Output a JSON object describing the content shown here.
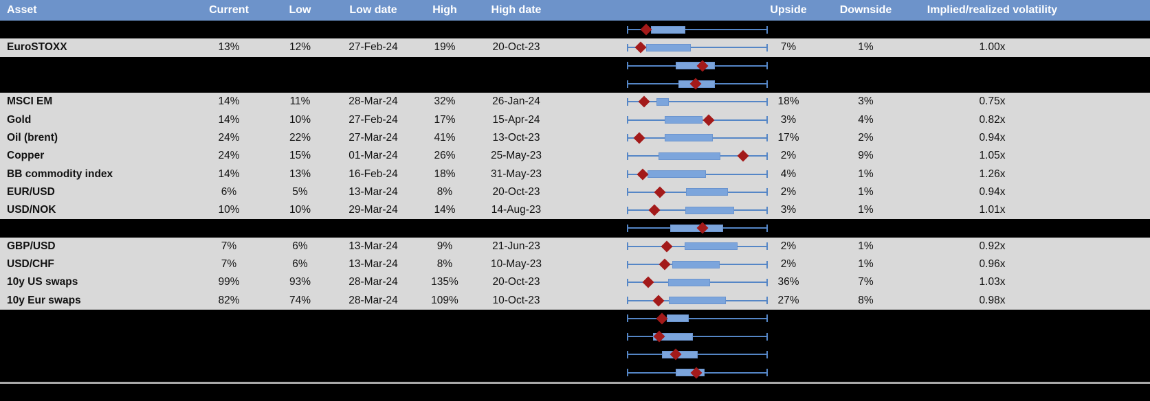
{
  "header": {
    "columns": [
      "Asset",
      "Current",
      "Low",
      "Low date",
      "High",
      "High date",
      "",
      "Upside",
      "Downside",
      "Implied/realized volatility"
    ]
  },
  "colors": {
    "header_bg": "#6D93CA",
    "row_bg": "#D9D9D9",
    "hidden_row_bg": "#000000",
    "whisker": "#5586C6",
    "box_fill": "#7CA5DC",
    "box_border": "#6A94CF",
    "diamond": "#A31A1A",
    "footer_line": "#A9A9A9"
  },
  "rows": [
    {
      "type": "hidden",
      "asset": "",
      "current": "",
      "low": "",
      "low_date": "",
      "high": "",
      "high_date": "",
      "upside": "",
      "downside": "",
      "implied": ""
    },
    {
      "type": "data",
      "asset": "EuroSTOXX",
      "current": "13%",
      "low": "12%",
      "low_date": "27-Feb-24",
      "high": "19%",
      "high_date": "20-Oct-23",
      "upside": "7%",
      "downside": "1%",
      "implied": "1.00x"
    },
    {
      "type": "hidden",
      "asset": "",
      "current": "",
      "low": "",
      "low_date": "",
      "high": "",
      "high_date": "",
      "upside": "",
      "downside": "",
      "implied": ""
    },
    {
      "type": "hidden",
      "asset": "",
      "current": "",
      "low": "",
      "low_date": "",
      "high": "",
      "high_date": "",
      "upside": "",
      "downside": "",
      "implied": ""
    },
    {
      "type": "data",
      "asset": "MSCI EM",
      "current": "14%",
      "low": "11%",
      "low_date": "28-Mar-24",
      "high": "32%",
      "high_date": "26-Jan-24",
      "upside": "18%",
      "downside": "3%",
      "implied": "0.75x"
    },
    {
      "type": "data",
      "asset": "Gold",
      "current": "14%",
      "low": "10%",
      "low_date": "27-Feb-24",
      "high": "17%",
      "high_date": "15-Apr-24",
      "upside": "3%",
      "downside": "4%",
      "implied": "0.82x"
    },
    {
      "type": "data",
      "asset": "Oil (brent)",
      "current": "24%",
      "low": "22%",
      "low_date": "27-Mar-24",
      "high": "41%",
      "high_date": "13-Oct-23",
      "upside": "17%",
      "downside": "2%",
      "implied": "0.94x"
    },
    {
      "type": "data",
      "asset": "Copper",
      "current": "24%",
      "low": "15%",
      "low_date": "01-Mar-24",
      "high": "26%",
      "high_date": "25-May-23",
      "upside": "2%",
      "downside": "9%",
      "implied": "1.05x"
    },
    {
      "type": "data",
      "asset": "BB commodity index",
      "current": "14%",
      "low": "13%",
      "low_date": "16-Feb-24",
      "high": "18%",
      "high_date": "31-May-23",
      "upside": "4%",
      "downside": "1%",
      "implied": "1.26x"
    },
    {
      "type": "data",
      "asset": "EUR/USD",
      "current": "6%",
      "low": "5%",
      "low_date": "13-Mar-24",
      "high": "8%",
      "high_date": "20-Oct-23",
      "upside": "2%",
      "downside": "1%",
      "implied": "0.94x"
    },
    {
      "type": "data",
      "asset": "USD/NOK",
      "current": "10%",
      "low": "10%",
      "low_date": "29-Mar-24",
      "high": "14%",
      "high_date": "14-Aug-23",
      "upside": "3%",
      "downside": "1%",
      "implied": "1.01x"
    },
    {
      "type": "hidden",
      "asset": "",
      "current": "",
      "low": "",
      "low_date": "",
      "high": "",
      "high_date": "",
      "upside": "",
      "downside": "",
      "implied": ""
    },
    {
      "type": "data",
      "asset": "GBP/USD",
      "current": "7%",
      "low": "6%",
      "low_date": "13-Mar-24",
      "high": "9%",
      "high_date": "21-Jun-23",
      "upside": "2%",
      "downside": "1%",
      "implied": "0.92x"
    },
    {
      "type": "data",
      "asset": "USD/CHF",
      "current": "7%",
      "low": "6%",
      "low_date": "13-Mar-24",
      "high": "8%",
      "high_date": "10-May-23",
      "upside": "2%",
      "downside": "1%",
      "implied": "0.96x"
    },
    {
      "type": "data",
      "asset": "10y US swaps",
      "current": "99%",
      "low": "93%",
      "low_date": "28-Mar-24",
      "high": "135%",
      "high_date": "20-Oct-23",
      "upside": "36%",
      "downside": "7%",
      "implied": "1.03x"
    },
    {
      "type": "data",
      "asset": "10y Eur swaps",
      "current": "82%",
      "low": "74%",
      "low_date": "28-Mar-24",
      "high": "109%",
      "high_date": "10-Oct-23",
      "upside": "27%",
      "downside": "8%",
      "implied": "0.98x"
    },
    {
      "type": "hidden",
      "asset": "",
      "current": "",
      "low": "",
      "low_date": "",
      "high": "",
      "high_date": "",
      "upside": "",
      "downside": "",
      "implied": ""
    },
    {
      "type": "hidden",
      "asset": "",
      "current": "",
      "low": "",
      "low_date": "",
      "high": "",
      "high_date": "",
      "upside": "",
      "downside": "",
      "implied": ""
    },
    {
      "type": "hidden",
      "asset": "",
      "current": "",
      "low": "",
      "low_date": "",
      "high": "",
      "high_date": "",
      "upside": "",
      "downside": "",
      "implied": ""
    },
    {
      "type": "hidden",
      "asset": "",
      "current": "",
      "low": "",
      "low_date": "",
      "high": "",
      "high_date": "",
      "upside": "",
      "downside": "",
      "implied": ""
    }
  ],
  "chart_data": {
    "type": "boxplot",
    "orientation": "horizontal",
    "note": "One mini box-whisker per table row; whiskers span the full normalized 12m range [0,1]; box = central band; red diamond = current level.",
    "rows": [
      {
        "label": "",
        "whisker": [
          0,
          1
        ],
        "box": [
          0.171,
          0.415
        ],
        "diamond": 0.137
      },
      {
        "label": "EuroSTOXX",
        "whisker": [
          0,
          1
        ],
        "box": [
          0.137,
          0.454
        ],
        "diamond": 0.098
      },
      {
        "label": "",
        "whisker": [
          0,
          1
        ],
        "box": [
          0.346,
          0.624
        ],
        "diamond": 0.537
      },
      {
        "label": "",
        "whisker": [
          0,
          1
        ],
        "box": [
          0.366,
          0.624
        ],
        "diamond": 0.488
      },
      {
        "label": "MSCI EM",
        "whisker": [
          0,
          1
        ],
        "box": [
          0.21,
          0.298
        ],
        "diamond": 0.122
      },
      {
        "label": "Gold",
        "whisker": [
          0,
          1
        ],
        "box": [
          0.268,
          0.537
        ],
        "diamond": 0.58
      },
      {
        "label": "Oil (brent)",
        "whisker": [
          0,
          1
        ],
        "box": [
          0.268,
          0.61
        ],
        "diamond": 0.088
      },
      {
        "label": "Copper",
        "whisker": [
          0,
          1
        ],
        "box": [
          0.224,
          0.663
        ],
        "diamond": 0.824
      },
      {
        "label": "BB commodity index",
        "whisker": [
          0,
          1
        ],
        "box": [
          0.146,
          0.561
        ],
        "diamond": 0.112
      },
      {
        "label": "EUR/USD",
        "whisker": [
          0,
          1
        ],
        "box": [
          0.42,
          0.717
        ],
        "diamond": 0.234
      },
      {
        "label": "USD/NOK",
        "whisker": [
          0,
          1
        ],
        "box": [
          0.415,
          0.761
        ],
        "diamond": 0.195
      },
      {
        "label": "",
        "whisker": [
          0,
          1
        ],
        "box": [
          0.307,
          0.683
        ],
        "diamond": 0.537
      },
      {
        "label": "GBP/USD",
        "whisker": [
          0,
          1
        ],
        "box": [
          0.41,
          0.785
        ],
        "diamond": 0.283
      },
      {
        "label": "USD/CHF",
        "whisker": [
          0,
          1
        ],
        "box": [
          0.322,
          0.659
        ],
        "diamond": 0.268
      },
      {
        "label": "10y US swaps",
        "whisker": [
          0,
          1
        ],
        "box": [
          0.293,
          0.59
        ],
        "diamond": 0.151
      },
      {
        "label": "10y Eur swaps",
        "whisker": [
          0,
          1
        ],
        "box": [
          0.298,
          0.702
        ],
        "diamond": 0.224
      },
      {
        "label": "",
        "whisker": [
          0,
          1
        ],
        "box": [
          0.283,
          0.439
        ],
        "diamond": 0.249
      },
      {
        "label": "",
        "whisker": [
          0,
          1
        ],
        "box": [
          0.185,
          0.468
        ],
        "diamond": 0.229
      },
      {
        "label": "",
        "whisker": [
          0,
          1
        ],
        "box": [
          0.249,
          0.502
        ],
        "diamond": 0.346
      },
      {
        "label": "",
        "whisker": [
          0,
          1
        ],
        "box": [
          0.346,
          0.551
        ],
        "diamond": 0.493
      }
    ]
  }
}
